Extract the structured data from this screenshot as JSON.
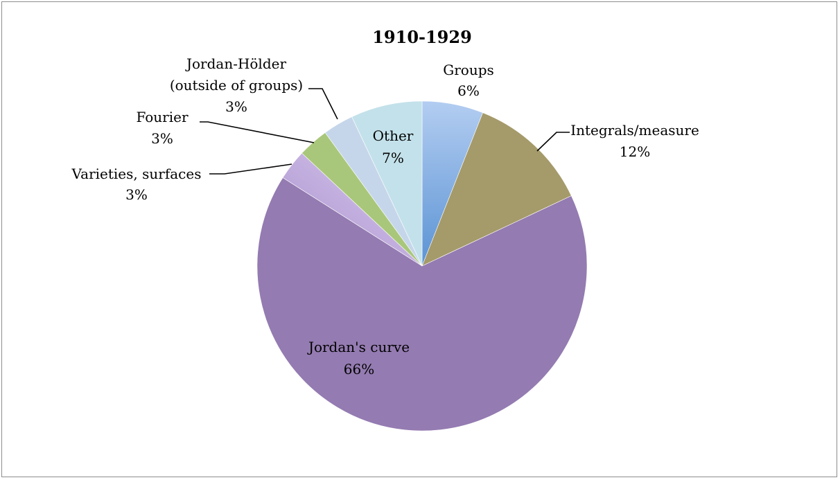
{
  "chart_data": {
    "type": "pie",
    "title": "1910-1929",
    "slices": [
      {
        "name": "Groups",
        "value": 6,
        "value_label": "6%",
        "color": "#8db3e2"
      },
      {
        "name": "Integrals/measure",
        "value": 12,
        "value_label": "12%",
        "color": "#a59a6a"
      },
      {
        "name": "Jordan's curve",
        "value": 66,
        "value_label": "66%",
        "color": "#947bb1"
      },
      {
        "name": "Varieties, surfaces",
        "value": 3,
        "value_label": "3%",
        "color": "#c6b4df"
      },
      {
        "name": "Fourier",
        "value": 3,
        "value_label": "3%",
        "color": "#a9c77a"
      },
      {
        "name": "Jordan-Hölder (outside of groups)",
        "value": 3,
        "value_label": "3%",
        "color": "#c6d6ea"
      },
      {
        "name": "Other",
        "value": 7,
        "value_label": "7%",
        "color": "#c3e1ea"
      }
    ],
    "labels": {
      "groups": {
        "lines": [
          "Groups"
        ],
        "pct": "6%"
      },
      "integrals": {
        "lines": [
          "Integrals/measure"
        ],
        "pct": "12%"
      },
      "jordan_curve": {
        "lines": [
          "Jordan's curve"
        ],
        "pct": "66%"
      },
      "varieties": {
        "lines": [
          "Varieties, surfaces"
        ],
        "pct": "3%"
      },
      "fourier": {
        "lines": [
          "Fourier"
        ],
        "pct": "3%"
      },
      "jordan_holder": {
        "lines": [
          "Jordan-Hölder",
          "(outside of groups)"
        ],
        "pct": "3%"
      },
      "other": {
        "lines": [
          "Other"
        ],
        "pct": "7%"
      }
    }
  }
}
